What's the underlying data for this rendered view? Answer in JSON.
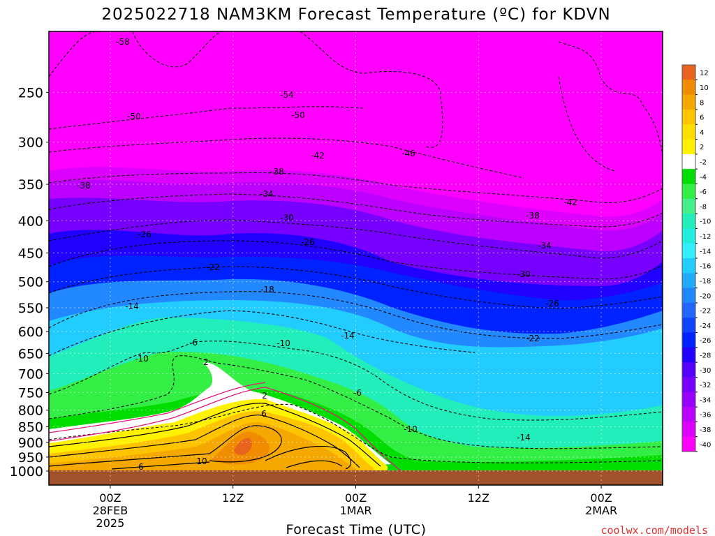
{
  "chart_data": {
    "type": "heatmap",
    "title": "2025022718 NAM3KM Forecast Temperature (ºC) for KDVN",
    "xlabel": "Forecast Time (UTC)",
    "ylabel": "",
    "x_ticks": [
      {
        "label": "00Z",
        "sub": [
          "28FEB",
          "2025"
        ]
      },
      {
        "label": "12Z",
        "sub": []
      },
      {
        "label": "00Z",
        "sub": [
          "1MAR"
        ]
      },
      {
        "label": "12Z",
        "sub": []
      },
      {
        "label": "00Z",
        "sub": [
          "2MAR"
        ]
      }
    ],
    "x_range_hours_from_init": [
      0,
      60
    ],
    "x_tick_hours_from_init": [
      6,
      18,
      30,
      42,
      54
    ],
    "y_ticks": [
      250,
      300,
      350,
      400,
      450,
      500,
      550,
      600,
      650,
      700,
      750,
      800,
      850,
      900,
      950,
      1000
    ],
    "ylim": [
      200,
      1000
    ],
    "y_scale": "log-pressure",
    "grid": true,
    "colorbar": {
      "labels": [
        "12",
        "10",
        "8",
        "6",
        "4",
        "2",
        "-2",
        "-4",
        "-6",
        "-8",
        "-10",
        "-12",
        "-14",
        "-16",
        "-18",
        "-20",
        "-22",
        "-24",
        "-26",
        "-28",
        "-30",
        "-32",
        "-34",
        "-36",
        "-38",
        "-40"
      ],
      "colors": [
        "#e8641e",
        "#f08c00",
        "#f5a800",
        "#ffc400",
        "#ffdf00",
        "#fff200",
        "#ffffff",
        "#00dd00",
        "#33ee44",
        "#44ee88",
        "#22eebb",
        "#22eedd",
        "#33eeff",
        "#22ccff",
        "#22aaff",
        "#2288ff",
        "#2266ff",
        "#1144ff",
        "#0022ff",
        "#2200ff",
        "#5500ff",
        "#7700ff",
        "#9900ff",
        "#bb00ff",
        "#dd00ff",
        "#ff00ff"
      ],
      "zero_band_color": "#ffffff"
    },
    "contour_labels": [
      "-58",
      "-54",
      "-50",
      "-50",
      "-42",
      "-46",
      "-38",
      "-38",
      "-34",
      "-30",
      "-26",
      "-26",
      "-22",
      "-18",
      "-14",
      "-14",
      "-10",
      "-10",
      "-6",
      "2",
      "2",
      "6",
      "-6",
      "-10",
      "-42",
      "-38",
      "-34",
      "-30",
      "-26",
      "-22",
      "-14",
      "10",
      "6"
    ],
    "ground_color": "#a0522d",
    "zero_line_color": "#e0197a"
  },
  "watermark": "coolwx.com/models"
}
